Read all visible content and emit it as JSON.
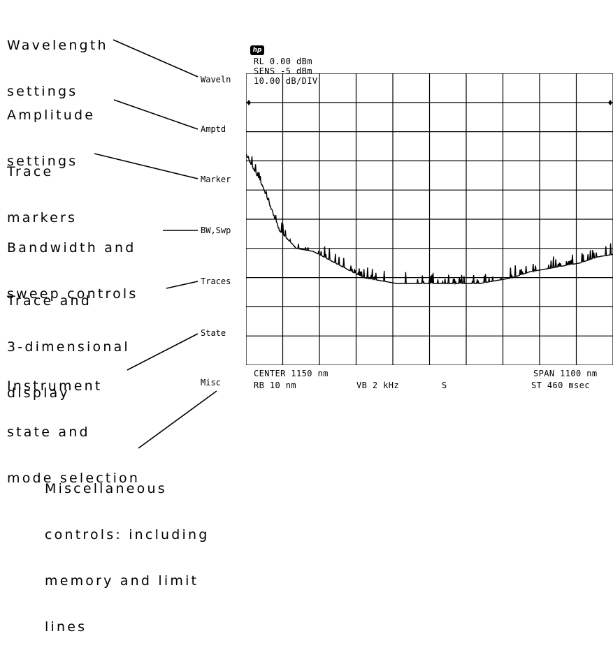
{
  "callouts": {
    "wavelength": [
      "Wavelength",
      "settings"
    ],
    "amplitude": [
      "Amplitude",
      "settings"
    ],
    "trace_markers": [
      "Trace",
      "markers"
    ],
    "bandwidth": [
      "Bandwidth and",
      "sweep controls"
    ],
    "trace_display": [
      "Trace and",
      "3-dimensional",
      "display"
    ],
    "instrument_state": [
      "Instrument",
      "state and",
      "mode selection"
    ],
    "misc": [
      "Miscellaneous",
      "controls:  including",
      "memory and limit",
      "lines"
    ]
  },
  "softkeys": {
    "waveln": "Waveln",
    "amptd": "Amptd",
    "marker": "Marker",
    "bw_swp": "BW,Swp",
    "traces": "Traces",
    "state": "State",
    "misc": "Misc"
  },
  "logo": "hp",
  "annotations": {
    "ref_level": "RL 0.00 dBm",
    "sens": "SENS  -5 dBm",
    "scale": "10.00 dB/DIV",
    "center": "CENTER 1150 nm",
    "span": "SPAN 1100 nm",
    "rbw": "RB 10 nm",
    "vbw": "VB 2 kHz",
    "sweep_mode": "S",
    "sweep_time": "ST 460 msec"
  },
  "chart_data": {
    "type": "line",
    "x_center_nm": 1150,
    "x_span_nm": 1100,
    "xlim": [
      600,
      1700
    ],
    "ylim": [
      -100,
      0
    ],
    "ylabel": "dBm",
    "grid": true,
    "x": [
      600,
      650,
      700,
      750,
      800,
      850,
      900,
      950,
      1000,
      1050,
      1100,
      1150,
      1200,
      1250,
      1300,
      1350,
      1400,
      1450,
      1500,
      1550,
      1600,
      1650,
      1700
    ],
    "y": [
      -28,
      -39,
      -54,
      -60,
      -61,
      -64,
      -67,
      -70,
      -71,
      -72,
      -72,
      -72,
      -72,
      -72,
      -72,
      -71,
      -70,
      -68,
      -67,
      -66,
      -65,
      -63,
      -62
    ]
  },
  "colors": {
    "ink": "#000000",
    "background": "#ffffff"
  }
}
